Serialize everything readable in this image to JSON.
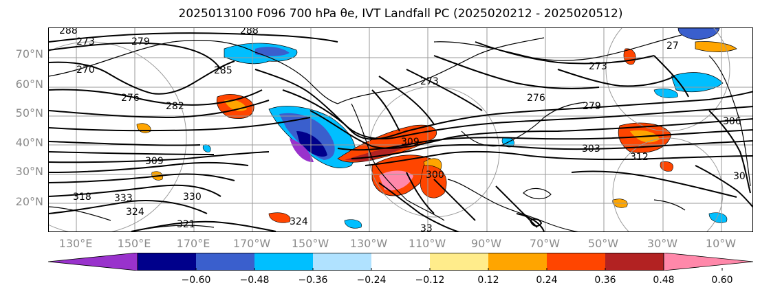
{
  "title": "2025013100 F096 700 hPa θe, IVT Landfall PC (2025020212 - 2025020512)",
  "lat_labels": [
    "70°N",
    "60°N",
    "50°N",
    "40°N",
    "30°N",
    "20°N"
  ],
  "lon_labels": [
    "130°E",
    "150°E",
    "170°E",
    "170°W",
    "150°W",
    "130°W",
    "110°W",
    "90°W",
    "70°W",
    "50°W",
    "30°W",
    "10°W"
  ],
  "contour_labels": [
    "288",
    "288",
    "273",
    "279",
    "270",
    "285",
    "282",
    "276",
    "273",
    "276",
    "279",
    "273",
    "27",
    "306",
    "309",
    "318",
    "333",
    "324",
    "321",
    "324",
    "330",
    "309",
    "303",
    "312",
    "30",
    "33",
    "300"
  ],
  "colorbar": {
    "colors": [
      "#9932cc",
      "#00008b",
      "#3a5fcd",
      "#00bfff",
      "#b0e2ff",
      "#ffffff",
      "#ffec8b",
      "#ffa500",
      "#ff4500",
      "#b22222",
      "#ff88aa"
    ],
    "tick_labels": [
      "−0.60",
      "−0.48",
      "−0.36",
      "−0.24",
      "−0.12",
      "0.12",
      "0.24",
      "0.36",
      "0.48",
      "0.60"
    ]
  }
}
